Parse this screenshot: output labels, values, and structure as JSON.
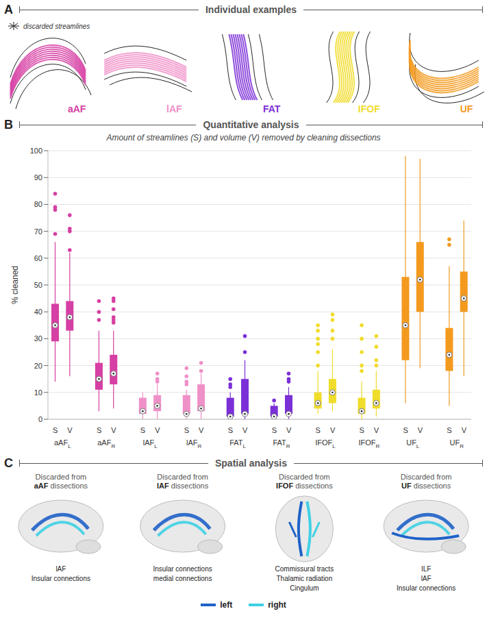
{
  "panel_a": {
    "letter": "A",
    "title": "Individual examples",
    "legend_label": "discarded streamlines",
    "discard_color": "#222222",
    "tracts": [
      {
        "name": "aAF",
        "color": "#d63fa3"
      },
      {
        "name": "lAF",
        "color": "#f090c8"
      },
      {
        "name": "FAT",
        "color": "#7b2fd6"
      },
      {
        "name": "IFOF",
        "color": "#f0dc2a"
      },
      {
        "name": "UF",
        "color": "#f39a1e"
      }
    ]
  },
  "chart_data": {
    "letter": "B",
    "type": "box",
    "title": "Quantitative analysis",
    "subtitle": "Amount of streamlines (S) and volume (V) removed by cleaning dissections",
    "y_label": "% cleaned",
    "ylim": [
      0,
      100
    ],
    "yticks": [
      0,
      10,
      20,
      30,
      40,
      50,
      60,
      70,
      80,
      90,
      100
    ],
    "grid": true,
    "groups": [
      {
        "tract": "aAF",
        "side": "L",
        "color": "#d63fa3",
        "boxes": [
          {
            "name": "S",
            "whisker_low": 14,
            "q1": 29,
            "median": 35,
            "q3": 43,
            "whisker_high": 66,
            "outliers": [
              69,
              78,
              79,
              84
            ]
          },
          {
            "name": "V",
            "whisker_low": 16,
            "q1": 33,
            "median": 38,
            "q3": 44,
            "whisker_high": 62,
            "outliers": [
              63,
              70,
              71,
              76
            ]
          }
        ]
      },
      {
        "tract": "aAF",
        "side": "R",
        "color": "#d63fa3",
        "boxes": [
          {
            "name": "S",
            "whisker_low": 3,
            "q1": 11,
            "median": 15,
            "q3": 21,
            "whisker_high": 33,
            "outliers": [
              37,
              40,
              44
            ]
          },
          {
            "name": "V",
            "whisker_low": 4,
            "q1": 13,
            "median": 17,
            "q3": 24,
            "whisker_high": 33,
            "outliers": [
              36,
              37,
              38,
              41,
              44,
              45
            ]
          }
        ]
      },
      {
        "tract": "lAF",
        "side": "L",
        "color": "#f090c8",
        "boxes": [
          {
            "name": "S",
            "whisker_low": 0,
            "q1": 2,
            "median": 3,
            "q3": 8,
            "whisker_high": 10,
            "outliers": []
          },
          {
            "name": "V",
            "whisker_low": 0,
            "q1": 3,
            "median": 5,
            "q3": 9,
            "whisker_high": 13,
            "outliers": [
              14,
              15,
              17
            ]
          }
        ]
      },
      {
        "tract": "lAF",
        "side": "R",
        "color": "#f090c8",
        "boxes": [
          {
            "name": "S",
            "whisker_low": 0,
            "q1": 2,
            "median": 2,
            "q3": 9,
            "whisker_high": 11,
            "outliers": [
              13,
              14,
              16,
              19
            ]
          },
          {
            "name": "V",
            "whisker_low": 0,
            "q1": 3,
            "median": 4,
            "q3": 13,
            "whisker_high": 17,
            "outliers": [
              18,
              21
            ]
          }
        ]
      },
      {
        "tract": "FAT",
        "side": "L",
        "color": "#7b2fd6",
        "boxes": [
          {
            "name": "S",
            "whisker_low": 0,
            "q1": 1,
            "median": 1,
            "q3": 8,
            "whisker_high": 10,
            "outliers": [
              12,
              13,
              15
            ]
          },
          {
            "name": "V",
            "whisker_low": 0,
            "q1": 2,
            "median": 2,
            "q3": 15,
            "whisker_high": 22,
            "outliers": [
              25,
              31
            ]
          }
        ]
      },
      {
        "tract": "FAT",
        "side": "R",
        "color": "#7b2fd6",
        "boxes": [
          {
            "name": "S",
            "whisker_low": 0,
            "q1": 1,
            "median": 1,
            "q3": 5,
            "whisker_high": 6,
            "outliers": [
              7
            ]
          },
          {
            "name": "V",
            "whisker_low": 0,
            "q1": 2,
            "median": 2,
            "q3": 9,
            "whisker_high": 12,
            "outliers": [
              14,
              15,
              17
            ]
          }
        ]
      },
      {
        "tract": "IFOF",
        "side": "L",
        "color": "#f0dc2a",
        "boxes": [
          {
            "name": "S",
            "whisker_low": 2,
            "q1": 4,
            "median": 6,
            "q3": 10,
            "whisker_high": 18,
            "outliers": [
              20,
              25,
              28,
              30,
              33,
              35
            ]
          },
          {
            "name": "V",
            "whisker_low": 3,
            "q1": 6,
            "median": 10,
            "q3": 15,
            "whisker_high": 26,
            "outliers": [
              30,
              33,
              37,
              39
            ]
          }
        ]
      },
      {
        "tract": "IFOF",
        "side": "R",
        "color": "#f0dc2a",
        "boxes": [
          {
            "name": "S",
            "whisker_low": 0,
            "q1": 2,
            "median": 3,
            "q3": 8,
            "whisker_high": 14,
            "outliers": [
              18,
              20,
              25,
              30,
              35
            ]
          },
          {
            "name": "V",
            "whisker_low": 1,
            "q1": 4,
            "median": 6,
            "q3": 11,
            "whisker_high": 18,
            "outliers": [
              20,
              22,
              27,
              31
            ]
          }
        ]
      },
      {
        "tract": "UF",
        "side": "L",
        "color": "#f39a1e",
        "boxes": [
          {
            "name": "S",
            "whisker_low": 6,
            "q1": 22,
            "median": 35,
            "q3": 53,
            "whisker_high": 98,
            "outliers": []
          },
          {
            "name": "V",
            "whisker_low": 19,
            "q1": 40,
            "median": 52,
            "q3": 66,
            "whisker_high": 97,
            "outliers": []
          }
        ]
      },
      {
        "tract": "UF",
        "side": "R",
        "color": "#f39a1e",
        "boxes": [
          {
            "name": "S",
            "whisker_low": 5,
            "q1": 18,
            "median": 24,
            "q3": 34,
            "whisker_high": 57,
            "outliers": [
              65,
              67
            ]
          },
          {
            "name": "V",
            "whisker_low": 16,
            "q1": 40,
            "median": 45,
            "q3": 55,
            "whisker_high": 74,
            "outliers": []
          }
        ]
      }
    ]
  },
  "panel_c": {
    "letter": "C",
    "title": "Spatial analysis",
    "views": [
      {
        "prefix": "Discarded from",
        "tract": "aAF",
        "suffix": "dissections",
        "labels": [
          "lAF",
          "Insular connections"
        ]
      },
      {
        "prefix": "Discarded from",
        "tract": "lAF",
        "suffix": "dissections",
        "labels": [
          "Insular connections",
          "medial connections"
        ]
      },
      {
        "prefix": "Discarded from",
        "tract": "IFOF",
        "suffix": "dissections",
        "labels": [
          "Commissural tracts",
          "Thalamic radiation",
          "Cingulum"
        ]
      },
      {
        "prefix": "Discarded from",
        "tract": "UF",
        "suffix": "dissections",
        "labels": [
          "ILF",
          "lAF",
          "Insular connections"
        ]
      }
    ],
    "legend": [
      {
        "name": "left",
        "color": "#1f62c8"
      },
      {
        "name": "right",
        "color": "#3fd0e4"
      }
    ]
  }
}
